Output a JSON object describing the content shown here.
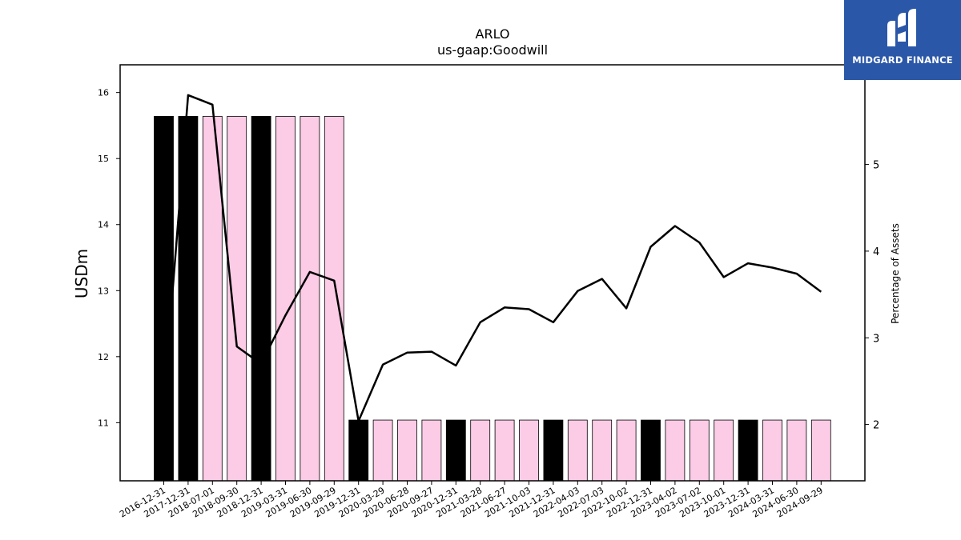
{
  "logo": {
    "text": "MIDGARD FINANCE",
    "color": "#2b57a8"
  },
  "chart_data": {
    "type": "bar",
    "title": "ARLO",
    "subtitle": "us-gaap:Goodwill",
    "ylabel": "USDm",
    "ylabel_right": "Percentage of Assets",
    "ylim": [
      10.12,
      16.42
    ],
    "ylim_right": [
      1.35,
      6.15
    ],
    "yticks": [
      11,
      12,
      13,
      14,
      15,
      16
    ],
    "yticks_right": [
      2,
      3,
      4,
      5
    ],
    "grid": false,
    "categories": [
      "2016-12-31",
      "2017-12-31",
      "2018-07-01",
      "2018-09-30",
      "2018-12-31",
      "2019-03-31",
      "2019-06-30",
      "2019-09-29",
      "2019-12-31",
      "2020-03-29",
      "2020-06-28",
      "2020-09-27",
      "2020-12-31",
      "2021-03-28",
      "2021-06-27",
      "2021-10-03",
      "2021-12-31",
      "2022-04-03",
      "2022-07-03",
      "2022-10-02",
      "2022-12-31",
      "2023-04-02",
      "2023-07-02",
      "2023-10-01",
      "2023-12-31",
      "2024-03-31",
      "2024-06-30",
      "2024-09-29"
    ],
    "series": [
      {
        "type": "bar",
        "axis": "left",
        "values": [
          15.64,
          15.64,
          15.64,
          15.64,
          15.64,
          15.64,
          15.64,
          15.64,
          11.04,
          11.04,
          11.04,
          11.04,
          11.04,
          11.04,
          11.04,
          11.04,
          11.04,
          11.04,
          11.04,
          11.04,
          11.04,
          11.04,
          11.04,
          11.04,
          11.04,
          11.04,
          11.04,
          11.04
        ],
        "fiscal_year_end": [
          true,
          true,
          false,
          false,
          true,
          false,
          false,
          false,
          true,
          false,
          false,
          false,
          true,
          false,
          false,
          false,
          true,
          false,
          false,
          false,
          true,
          false,
          false,
          false,
          true,
          false,
          false,
          false
        ],
        "color_year_end": "#000000",
        "color_quarter": "#fccce6"
      },
      {
        "type": "line",
        "axis": "right",
        "values": [
          2.25,
          5.8,
          5.69,
          2.9,
          2.7,
          3.26,
          3.76,
          3.66,
          2.04,
          2.69,
          2.83,
          2.84,
          2.68,
          3.18,
          3.35,
          3.33,
          3.18,
          3.54,
          3.68,
          3.34,
          4.05,
          4.29,
          4.1,
          3.7,
          3.86,
          3.81,
          3.74,
          3.53
        ],
        "color": "#000000"
      }
    ]
  }
}
